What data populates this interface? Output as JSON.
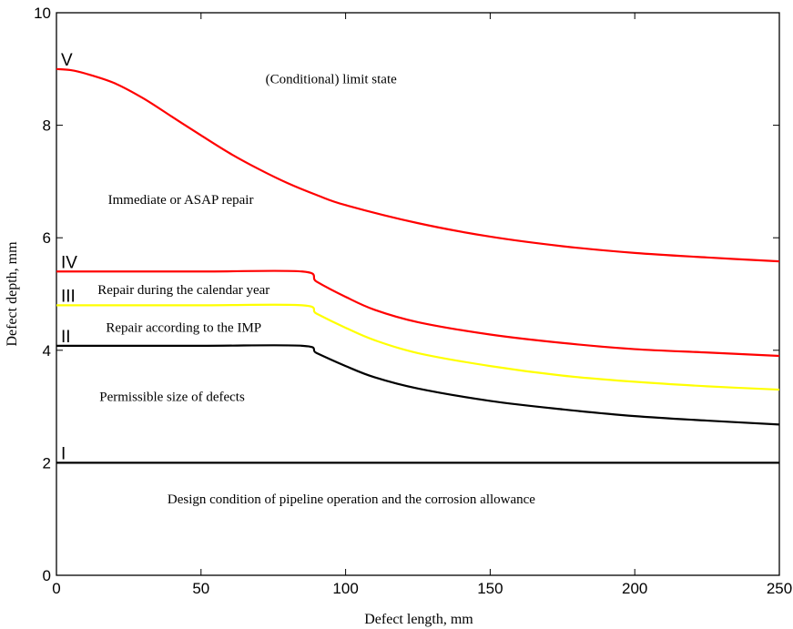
{
  "chart_data": {
    "type": "line",
    "xlabel": "Defect length, mm",
    "ylabel": "Defect depth, mm",
    "xlim": [
      0,
      250
    ],
    "ylim": [
      0,
      10
    ],
    "xticks": [
      0,
      50,
      100,
      150,
      200,
      250
    ],
    "yticks": [
      0,
      2,
      4,
      6,
      8,
      10
    ],
    "xtick_labels": [
      "0",
      "50",
      "100",
      "150",
      "200",
      "250"
    ],
    "ytick_labels": [
      "0",
      "2",
      "4",
      "6",
      "8",
      "10"
    ],
    "grid": false,
    "series": [
      {
        "name": "I",
        "color": "#000000",
        "x": [
          0,
          50,
          85,
          100,
          150,
          200,
          250
        ],
        "y": [
          2.0,
          2.0,
          2.0,
          2.0,
          2.0,
          2.0,
          2.0
        ]
      },
      {
        "name": "II",
        "color": "#000000",
        "x": [
          0,
          50,
          85,
          90,
          100,
          110,
          125,
          150,
          175,
          200,
          225,
          250
        ],
        "y": [
          4.08,
          4.08,
          4.08,
          3.95,
          3.72,
          3.52,
          3.32,
          3.1,
          2.95,
          2.83,
          2.75,
          2.68
        ]
      },
      {
        "name": "III",
        "color": "#ffff00",
        "x": [
          0,
          50,
          85,
          90,
          100,
          110,
          125,
          150,
          175,
          200,
          225,
          250
        ],
        "y": [
          4.8,
          4.8,
          4.8,
          4.65,
          4.4,
          4.18,
          3.95,
          3.72,
          3.55,
          3.44,
          3.36,
          3.3
        ]
      },
      {
        "name": "IV",
        "color": "#ff0000",
        "x": [
          0,
          50,
          85,
          90,
          100,
          110,
          125,
          150,
          175,
          200,
          225,
          250
        ],
        "y": [
          5.4,
          5.4,
          5.4,
          5.22,
          4.95,
          4.72,
          4.5,
          4.28,
          4.13,
          4.02,
          3.96,
          3.9
        ]
      },
      {
        "name": "V",
        "color": "#ff0000",
        "x": [
          0,
          5,
          10,
          20,
          30,
          40,
          50,
          60,
          70,
          80,
          90,
          100,
          125,
          150,
          175,
          200,
          225,
          250
        ],
        "y": [
          9.0,
          8.98,
          8.92,
          8.75,
          8.48,
          8.15,
          7.82,
          7.5,
          7.22,
          6.97,
          6.76,
          6.58,
          6.26,
          6.02,
          5.85,
          5.73,
          5.65,
          5.58
        ]
      }
    ],
    "region_labels": [
      {
        "text": "(Conditional) limit state",
        "x": 95,
        "y": 8.75
      },
      {
        "text": "Immediate or ASAP repair",
        "x": 43,
        "y": 6.6
      },
      {
        "text": "Repair during the calendar year",
        "x": 44,
        "y": 5.0
      },
      {
        "text": "Repair according to the IMP",
        "x": 44,
        "y": 4.33
      },
      {
        "text": "Permissible size of defects",
        "x": 40,
        "y": 3.1
      },
      {
        "text": "Design condition of pipeline operation and the corrosion allowance",
        "x": 102,
        "y": 1.28
      }
    ]
  }
}
